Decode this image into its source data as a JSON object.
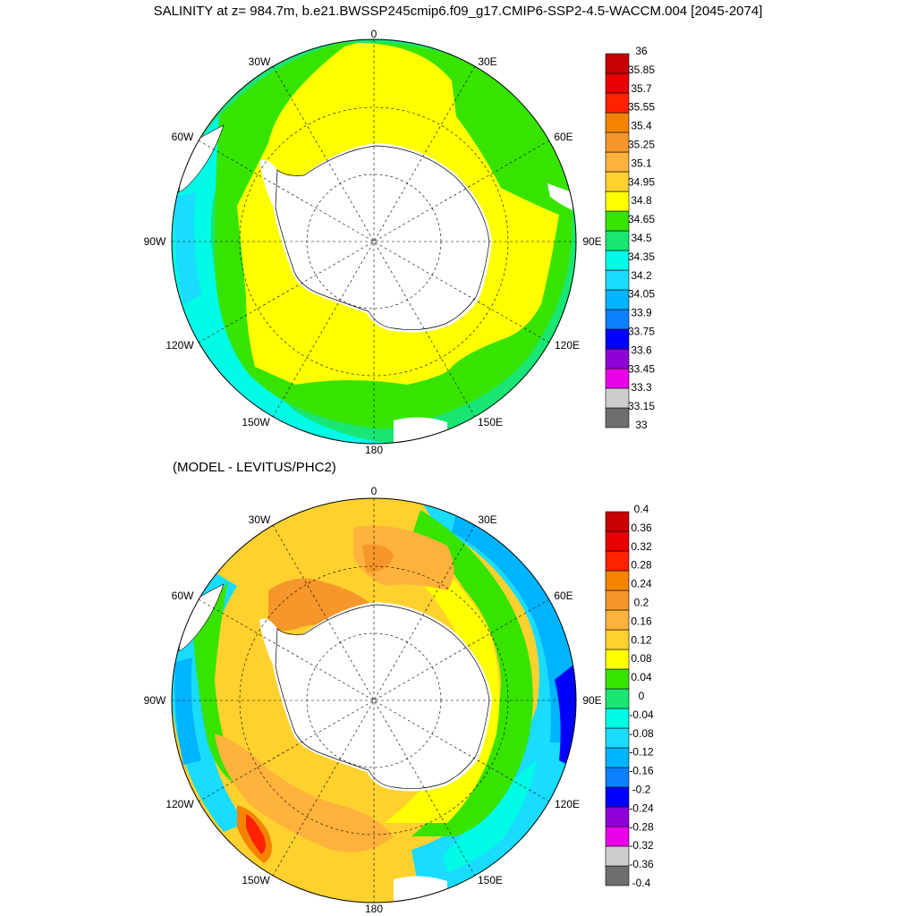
{
  "title": "SALINITY at z= 984.7m, b.e21.BWSSP245cmip6.f09_g17.CMIP6-SSP2-4.5-WACCM.004 [2045-2074]",
  "subtitle": "(MODEL - LEVITUS/PHC2)",
  "lon_labels": {
    "top": "0",
    "bottom": "180",
    "w30": "30W",
    "w60": "60W",
    "w90": "90W",
    "w120": "120W",
    "w150": "150W",
    "e30": "30E",
    "e60": "60E",
    "e90": "90E",
    "e120": "120E",
    "e150": "150E"
  },
  "colors": {
    "salinity": [
      "#6e6e6e",
      "#cdcdcd",
      "#e900e9",
      "#8f00d9",
      "#0000ff",
      "#0c7fff",
      "#00b4ff",
      "#19dcff",
      "#00fbe6",
      "#19e673",
      "#37e400",
      "#ffff00",
      "#ffd12e",
      "#ffb23c",
      "#f5972b",
      "#f48400",
      "#ff2100",
      "#e80000",
      "#c80000"
    ],
    "diff": [
      "#6e6e6e",
      "#cdcdcd",
      "#e900e9",
      "#8f00d9",
      "#0000ff",
      "#0c7fff",
      "#00b4ff",
      "#19dcff",
      "#00fbe6",
      "#19e673",
      "#37e400",
      "#ffff00",
      "#ffd12e",
      "#ffb23c",
      "#f5972b",
      "#f48400",
      "#ff2100",
      "#e80000",
      "#c80000"
    ]
  },
  "colorbar_top": [
    "36",
    "35.85",
    "35.7",
    "35.55",
    "35.4",
    "35.25",
    "35.1",
    "34.95",
    "34.8",
    "34.65",
    "34.5",
    "34.35",
    "34.2",
    "34.05",
    "33.9",
    "33.75",
    "33.6",
    "33.45",
    "33.3",
    "33.15",
    "33"
  ],
  "colorbar_bottom": [
    "0.4",
    "0.36",
    "0.32",
    "0.28",
    "0.24",
    "0.2",
    "0.16",
    "0.12",
    "0.08",
    "0.04",
    "0",
    "-0.04",
    "-0.08",
    "-0.12",
    "-0.16",
    "-0.2",
    "-0.24",
    "-0.28",
    "-0.32",
    "-0.36",
    "-0.4"
  ]
}
